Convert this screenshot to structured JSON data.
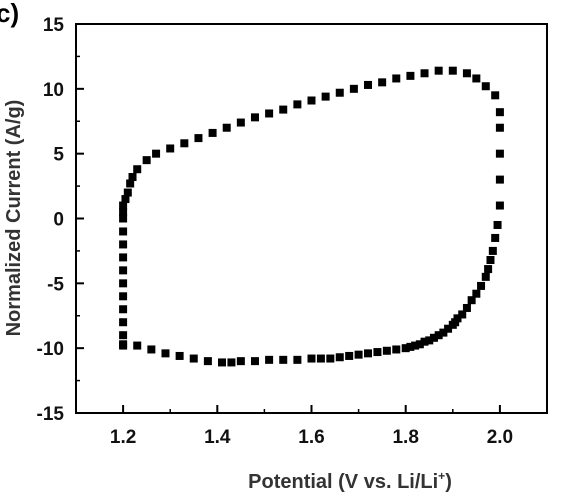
{
  "panel_label": "c)",
  "chart_data": {
    "type": "scatter",
    "title": "",
    "xlabel_main": "Potential (V vs. Li/Li",
    "xlabel_sup": "+",
    "xlabel_end": ")",
    "ylabel": "Normalized Current  (A/g)",
    "xlim": [
      1.1,
      2.1
    ],
    "ylim": [
      -15,
      15
    ],
    "xticks": [
      1.2,
      1.4,
      1.6,
      1.8,
      2.0
    ],
    "xtick_labels": [
      "1.2",
      "1.4",
      "1.6",
      "1.8",
      "2.0"
    ],
    "yticks": [
      -15,
      -10,
      -5,
      0,
      5,
      10,
      15
    ],
    "ytick_labels": [
      "-15",
      "-10",
      "-5",
      "0",
      "5",
      "10",
      "15"
    ],
    "grid": false,
    "marker_color": "#000000",
    "series": [
      {
        "marker": "square",
        "x": [
          1.2,
          1.2,
          1.2,
          1.2,
          1.2,
          1.2,
          1.2,
          1.2,
          1.2,
          1.2,
          1.2,
          1.2,
          1.2,
          1.205,
          1.21,
          1.215,
          1.22,
          1.23,
          1.25,
          1.27,
          1.3,
          1.33,
          1.36,
          1.39,
          1.42,
          1.45,
          1.48,
          1.51,
          1.54,
          1.57,
          1.6,
          1.63,
          1.66,
          1.69,
          1.72,
          1.75,
          1.78,
          1.81,
          1.84,
          1.87,
          1.9,
          1.93,
          1.95,
          1.97,
          1.99,
          2.0,
          2.0,
          2.0,
          2.0,
          2.0,
          1.995,
          1.99,
          1.985,
          1.98,
          1.975,
          1.97,
          1.96,
          1.95,
          1.94,
          1.93,
          1.92,
          1.91,
          1.905,
          1.9,
          1.89,
          1.88,
          1.87,
          1.86,
          1.85,
          1.84,
          1.83,
          1.82,
          1.81,
          1.8,
          1.78,
          1.76,
          1.74,
          1.72,
          1.7,
          1.68,
          1.66,
          1.64,
          1.62,
          1.6,
          1.57,
          1.54,
          1.51,
          1.48,
          1.45,
          1.43,
          1.41,
          1.38,
          1.35,
          1.32,
          1.29,
          1.26,
          1.23,
          1.2
        ],
        "y": [
          -9.8,
          -9.0,
          -8.0,
          -7.0,
          -6.0,
          -5.0,
          -4.0,
          -3.0,
          -2.0,
          -1.0,
          0.0,
          0.5,
          1.0,
          1.5,
          2.0,
          2.7,
          3.2,
          3.8,
          4.5,
          5.0,
          5.4,
          5.8,
          6.2,
          6.6,
          7.0,
          7.4,
          7.8,
          8.1,
          8.4,
          8.8,
          9.1,
          9.4,
          9.7,
          10.0,
          10.3,
          10.5,
          10.8,
          11.0,
          11.2,
          11.4,
          11.4,
          11.2,
          10.8,
          10.2,
          9.5,
          8.2,
          7.0,
          5.0,
          3.0,
          1.0,
          -0.5,
          -1.5,
          -2.5,
          -3.2,
          -3.9,
          -4.5,
          -5.2,
          -5.8,
          -6.3,
          -6.9,
          -7.4,
          -7.7,
          -8.0,
          -8.2,
          -8.5,
          -8.8,
          -9.0,
          -9.2,
          -9.4,
          -9.5,
          -9.7,
          -9.8,
          -9.9,
          -10.0,
          -10.1,
          -10.2,
          -10.3,
          -10.4,
          -10.5,
          -10.6,
          -10.7,
          -10.8,
          -10.8,
          -10.8,
          -10.9,
          -10.9,
          -10.9,
          -11.0,
          -11.0,
          -11.1,
          -11.1,
          -11.0,
          -10.8,
          -10.6,
          -10.4,
          -10.1,
          -9.8,
          -9.7
        ]
      }
    ]
  }
}
